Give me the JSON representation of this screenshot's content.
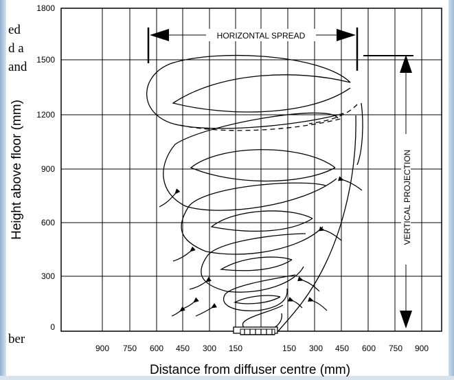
{
  "page": {
    "left_text_fragments": [
      "ed",
      "d a",
      "and",
      "ber"
    ]
  },
  "diagram": {
    "ylabel": "Height above floor (mm)",
    "xlabel": "Distance from diffuser centre (mm)",
    "y_ticks": [
      "0",
      "300",
      "600",
      "900",
      "1200",
      "1500",
      "1800"
    ],
    "x_ticks": [
      "900",
      "750",
      "600",
      "450",
      "300",
      "150",
      "150",
      "300",
      "450",
      "600",
      "750",
      "900"
    ],
    "horizontal_spread_label": "HORIZONTAL SPREAD",
    "vertical_projection_label": "VERTICAL PROJECTION"
  },
  "colors": {
    "line": "#000000",
    "background": "#ffffff",
    "side_panel": "#8fb2cf"
  }
}
